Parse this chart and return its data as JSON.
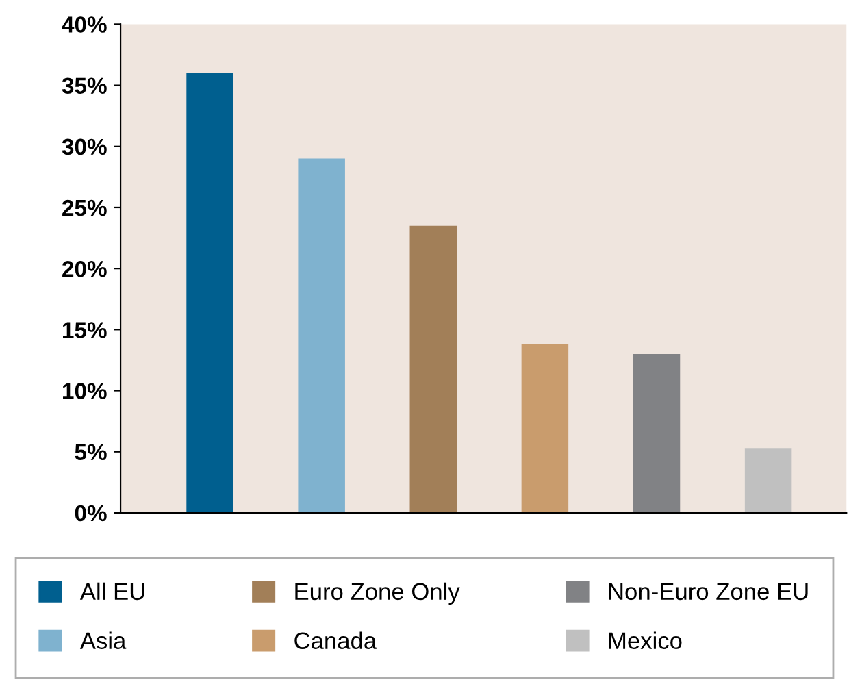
{
  "chart_data": {
    "type": "bar",
    "categories": [
      null,
      null,
      null,
      null,
      null,
      null
    ],
    "series": [
      {
        "name": "All EU",
        "color": "#005f8f",
        "values": [
          36,
          null,
          null,
          null,
          null,
          null
        ]
      },
      {
        "name": "Asia",
        "color": "#7fb2cf",
        "values": [
          null,
          29,
          null,
          null,
          null,
          null
        ]
      },
      {
        "name": "Euro Zone Only",
        "color": "#a27f58",
        "values": [
          null,
          null,
          23.5,
          null,
          null,
          null
        ]
      },
      {
        "name": "Canada",
        "color": "#c99c6d",
        "values": [
          null,
          null,
          null,
          13.8,
          null,
          null
        ]
      },
      {
        "name": "Non-Euro Zone EU",
        "color": "#818285",
        "values": [
          null,
          null,
          null,
          null,
          13,
          null
        ]
      },
      {
        "name": "Mexico",
        "color": "#c0c0c0",
        "values": [
          null,
          null,
          null,
          null,
          null,
          5.3
        ]
      }
    ],
    "ylim": [
      0,
      40
    ],
    "yticks": [
      {
        "value": 0,
        "label": "0%"
      },
      {
        "value": 5,
        "label": "5%"
      },
      {
        "value": 10,
        "label": "10%"
      },
      {
        "value": 15,
        "label": "15%"
      },
      {
        "value": 20,
        "label": "20%"
      },
      {
        "value": 25,
        "label": "25%"
      },
      {
        "value": 30,
        "label": "30%"
      },
      {
        "value": 35,
        "label": "35%"
      },
      {
        "value": 40,
        "label": "40%"
      }
    ],
    "grid": false,
    "legend": "bottom"
  }
}
